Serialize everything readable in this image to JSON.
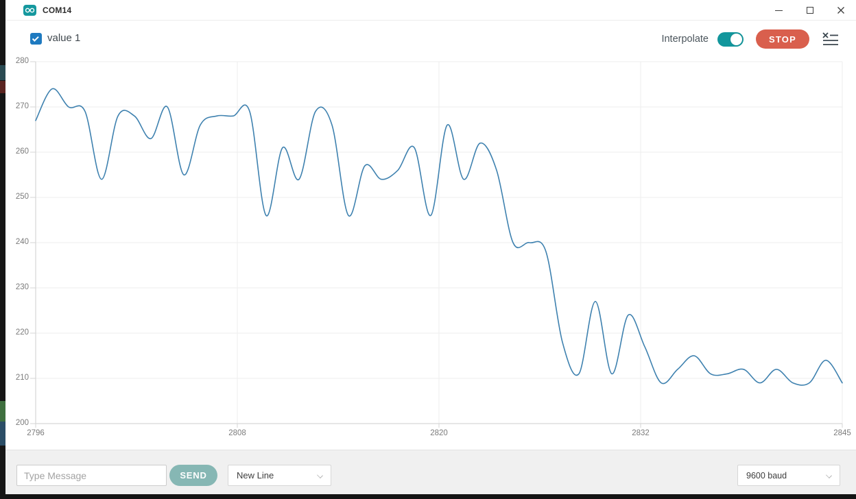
{
  "window": {
    "title": "COM14"
  },
  "legend": {
    "series_label": "value 1",
    "checked": true
  },
  "toolbar": {
    "interpolate_label": "Interpolate",
    "interpolate_on": true,
    "stop_label": "STOP"
  },
  "chart_data": {
    "type": "line",
    "title": "",
    "xlabel": "",
    "ylabel": "",
    "xlim": [
      2796,
      2845
    ],
    "ylim": [
      200,
      280
    ],
    "yticks": [
      200,
      210,
      220,
      230,
      240,
      250,
      260,
      270,
      280
    ],
    "xticks": [
      2796,
      2808,
      2820,
      2832,
      2845
    ],
    "xtick_positions": [
      0,
      0.25,
      0.5,
      0.75,
      1
    ],
    "grid": true,
    "legend_position": "top-left",
    "interpolate": true,
    "series": [
      {
        "name": "value 1",
        "color": "#3e81af",
        "x_first": 2796,
        "x_last": 2845,
        "values": [
          267,
          274,
          270,
          269,
          254,
          268,
          268,
          263,
          270,
          255,
          266,
          268,
          268,
          269,
          246,
          261,
          254,
          269,
          266,
          246,
          257,
          254,
          256,
          261,
          246,
          266,
          254,
          262,
          256,
          240,
          240,
          238,
          218,
          211,
          227,
          211,
          224,
          217,
          209,
          212,
          215,
          211,
          211,
          212,
          209,
          212,
          209,
          209,
          214,
          209
        ]
      }
    ]
  },
  "message_bar": {
    "input_placeholder": "Type Message",
    "input_value": "",
    "send_label": "SEND",
    "line_ending_selected": "New Line",
    "baud_selected": "9600 baud"
  },
  "colors": {
    "titlebar_icon_teal": "#15989e",
    "checkbox_blue": "#1e7ac0",
    "accent_teal": "#12969c",
    "stop_red": "#d95f4d",
    "send_teal": "#86b7b4",
    "line_blue": "#3e81af",
    "grid_gray": "#ededed",
    "axis_gray": "#d6d6d6"
  }
}
